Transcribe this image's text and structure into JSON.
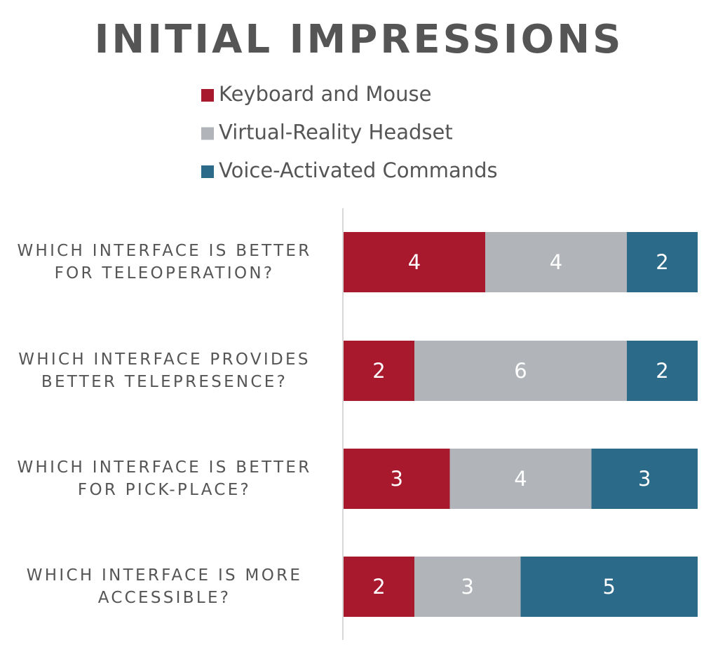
{
  "chart_data": {
    "type": "stacked-bar-horizontal",
    "title": "INITIAL IMPRESSIONS",
    "categories": [
      "WHICH INTERFACE IS BETTER FOR TELEOPERATION?",
      "WHICH INTERFACE PROVIDES BETTER TELEPRESENCE?",
      "WHICH INTERFACE IS BETTER FOR PICK-PLACE?",
      "WHICH INTERFACE IS MORE ACCESSIBLE?"
    ],
    "series": [
      {
        "name": "Keyboard and Mouse",
        "color": "#a8192e",
        "values": [
          4,
          2,
          3,
          2
        ]
      },
      {
        "name": "Virtual-Reality Headset",
        "color": "#b1b5b9",
        "values": [
          4,
          6,
          4,
          3
        ]
      },
      {
        "name": "Voice-Activated Commands",
        "color": "#2c6a8a",
        "values": [
          2,
          2,
          3,
          5
        ]
      }
    ],
    "xlim": [
      0,
      10
    ]
  }
}
